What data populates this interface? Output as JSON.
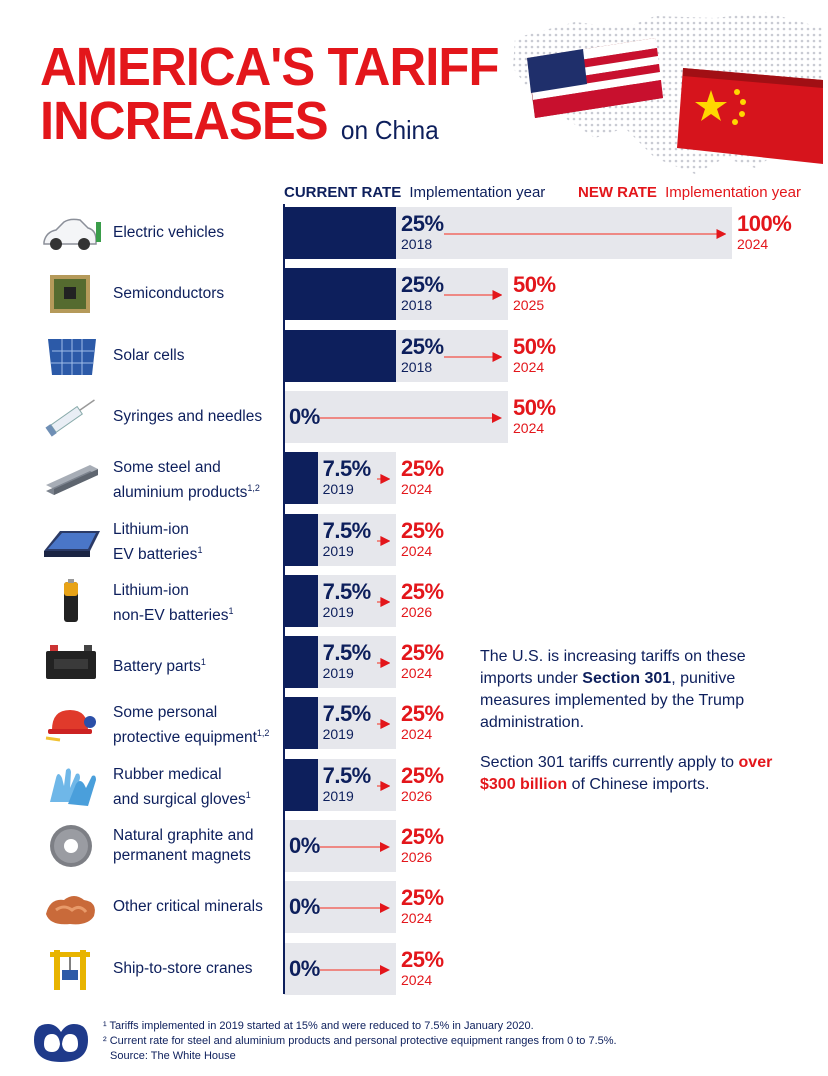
{
  "title": {
    "line1": "AMERICA'S TARIFF",
    "line2": "INCREASES",
    "subtitle": "on China"
  },
  "headers": {
    "current_rate": "CURRENT RATE",
    "current_impl": "Implementation year",
    "new_rate": "NEW RATE",
    "new_impl": "Implementation year"
  },
  "chart_data": {
    "type": "bar",
    "title": "AMERICA'S TARIFF INCREASES on China",
    "xlim": [
      0,
      100
    ],
    "rows": [
      {
        "label_lines": [
          "Electric vehicles"
        ],
        "sup": "",
        "icon": "electric-car-icon",
        "current": 25,
        "current_label": "25%",
        "current_year": "2018",
        "new": 100,
        "new_label": "100%",
        "new_year": "2024"
      },
      {
        "label_lines": [
          "Semiconductors"
        ],
        "sup": "",
        "icon": "microchip-icon",
        "current": 25,
        "current_label": "25%",
        "current_year": "2018",
        "new": 50,
        "new_label": "50%",
        "new_year": "2025"
      },
      {
        "label_lines": [
          "Solar cells"
        ],
        "sup": "",
        "icon": "solar-panel-icon",
        "current": 25,
        "current_label": "25%",
        "current_year": "2018",
        "new": 50,
        "new_label": "50%",
        "new_year": "2024"
      },
      {
        "label_lines": [
          "Syringes and needles"
        ],
        "sup": "",
        "icon": "syringe-icon",
        "current": 0,
        "current_label": "0%",
        "current_year": "",
        "new": 50,
        "new_label": "50%",
        "new_year": "2024"
      },
      {
        "label_lines": [
          "Some steel and",
          "aluminium products"
        ],
        "sup": "1,2",
        "icon": "steel-beams-icon",
        "current": 7.5,
        "current_label": "7.5%",
        "current_year": "2019",
        "new": 25,
        "new_label": "25%",
        "new_year": "2024"
      },
      {
        "label_lines": [
          "Lithium-ion",
          "EV batteries"
        ],
        "sup": "1",
        "icon": "ev-battery-icon",
        "current": 7.5,
        "current_label": "7.5%",
        "current_year": "2019",
        "new": 25,
        "new_label": "25%",
        "new_year": "2024"
      },
      {
        "label_lines": [
          "Lithium-ion",
          "non-EV batteries"
        ],
        "sup": "1",
        "icon": "battery-cell-icon",
        "current": 7.5,
        "current_label": "7.5%",
        "current_year": "2019",
        "new": 25,
        "new_label": "25%",
        "new_year": "2026"
      },
      {
        "label_lines": [
          "Battery parts"
        ],
        "sup": "1",
        "icon": "car-battery-icon",
        "current": 7.5,
        "current_label": "7.5%",
        "current_year": "2019",
        "new": 25,
        "new_label": "25%",
        "new_year": "2024"
      },
      {
        "label_lines": [
          "Some personal",
          "protective equipment"
        ],
        "sup": "1,2",
        "icon": "hard-hat-icon",
        "current": 7.5,
        "current_label": "7.5%",
        "current_year": "2019",
        "new": 25,
        "new_label": "25%",
        "new_year": "2024"
      },
      {
        "label_lines": [
          "Rubber medical",
          "and surgical gloves"
        ],
        "sup": "1",
        "icon": "gloves-icon",
        "current": 7.5,
        "current_label": "7.5%",
        "current_year": "2019",
        "new": 25,
        "new_label": "25%",
        "new_year": "2026"
      },
      {
        "label_lines": [
          "Natural graphite and",
          "permanent magnets"
        ],
        "sup": "",
        "icon": "magnet-disc-icon",
        "current": 0,
        "current_label": "0%",
        "current_year": "",
        "new": 25,
        "new_label": "25%",
        "new_year": "2026"
      },
      {
        "label_lines": [
          "Other critical minerals"
        ],
        "sup": "",
        "icon": "copper-ore-icon",
        "current": 0,
        "current_label": "0%",
        "current_year": "",
        "new": 25,
        "new_label": "25%",
        "new_year": "2024"
      },
      {
        "label_lines": [
          "Ship-to-store cranes"
        ],
        "sup": "",
        "icon": "crane-icon",
        "current": 0,
        "current_label": "0%",
        "current_year": "",
        "new": 25,
        "new_label": "25%",
        "new_year": "2024"
      }
    ]
  },
  "note": {
    "p1_a": "The U.S. is increasing tariffs on these imports under ",
    "p1_bold": "Section 301",
    "p1_b": ", punitive measures implemented by the Trump administration.",
    "p2_a": "Section 301 tariffs currently apply to ",
    "p2_bold": "over $300 billion",
    "p2_b": " of Chinese imports."
  },
  "footnotes": {
    "f1": "¹ Tariffs implemented in 2019 started at 15% and were reduced to 7.5% in January 2020.",
    "f2": "² Current rate for steel and aluminium products and personal protective equipment ranges from 0 to 7.5%.",
    "source": "Source: The White House"
  },
  "colors": {
    "navy": "#0d1f5c",
    "red": "#e3161b",
    "bar_bg": "#e6e7ec",
    "arrow": "#f06a62"
  }
}
